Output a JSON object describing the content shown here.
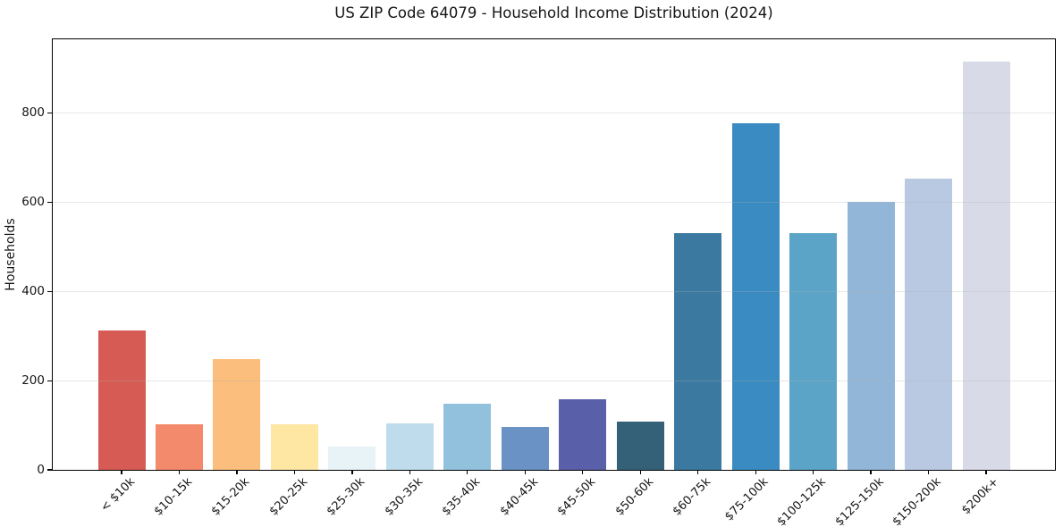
{
  "chart_data": {
    "type": "bar",
    "title": "US ZIP Code 64079 - Household Income Distribution (2024)",
    "xlabel": "",
    "ylabel": "Households",
    "categories": [
      "< $10k",
      "$10-15k",
      "$15-20k",
      "$20-25k",
      "$25-30k",
      "$30-35k",
      "$35-40k",
      "$40-45k",
      "$45-50k",
      "$50-60k",
      "$60-75k",
      "$75-100k",
      "$100-125k",
      "$125-150k",
      "$150-200k",
      "$200k+"
    ],
    "values": [
      313,
      102,
      249,
      102,
      52,
      104,
      149,
      96,
      159,
      108,
      530,
      777,
      530,
      600,
      653,
      914
    ],
    "bar_colors": [
      "#d65b54",
      "#f38a6b",
      "#fcbe7c",
      "#fde7a2",
      "#e8f3f8",
      "#bedcec",
      "#92c1dd",
      "#6a92c5",
      "#5a5fa9",
      "#356178",
      "#3b79a1",
      "#3a8bc2",
      "#5ba4c7",
      "#92b6d8",
      "#bac9e2",
      "#d8dae8"
    ],
    "yticks": [
      0,
      200,
      400,
      600,
      800
    ],
    "ylim": [
      0,
      965
    ],
    "grid": "horizontal",
    "legend": "none",
    "x_tick_rotation_deg": 45,
    "colors": {
      "background": "#ffffff",
      "spine": "#000000",
      "text": "#151515",
      "gridline": "rgba(176,176,176,0.30)"
    }
  }
}
